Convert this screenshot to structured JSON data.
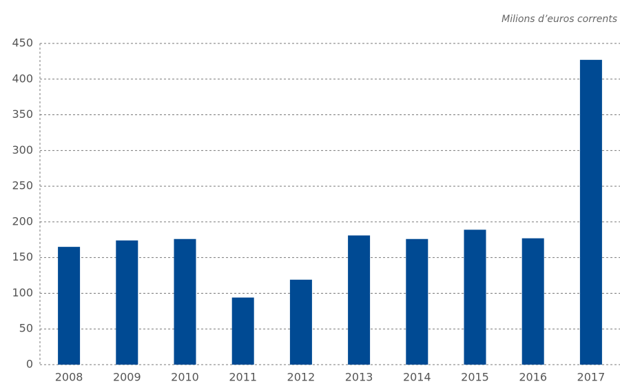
{
  "chart_data": {
    "type": "bar",
    "subtitle": "Milions d’euros corrents",
    "categories": [
      "2008",
      "2009",
      "2010",
      "2011",
      "2012",
      "2013",
      "2014",
      "2015",
      "2016",
      "2017"
    ],
    "values": [
      165,
      174,
      176,
      94,
      119,
      181,
      176,
      189,
      177,
      427
    ],
    "color": "#004a93",
    "ylim": [
      0,
      450
    ],
    "yticks": [
      0,
      50,
      100,
      150,
      200,
      250,
      300,
      350,
      400,
      450
    ],
    "grid": true
  }
}
